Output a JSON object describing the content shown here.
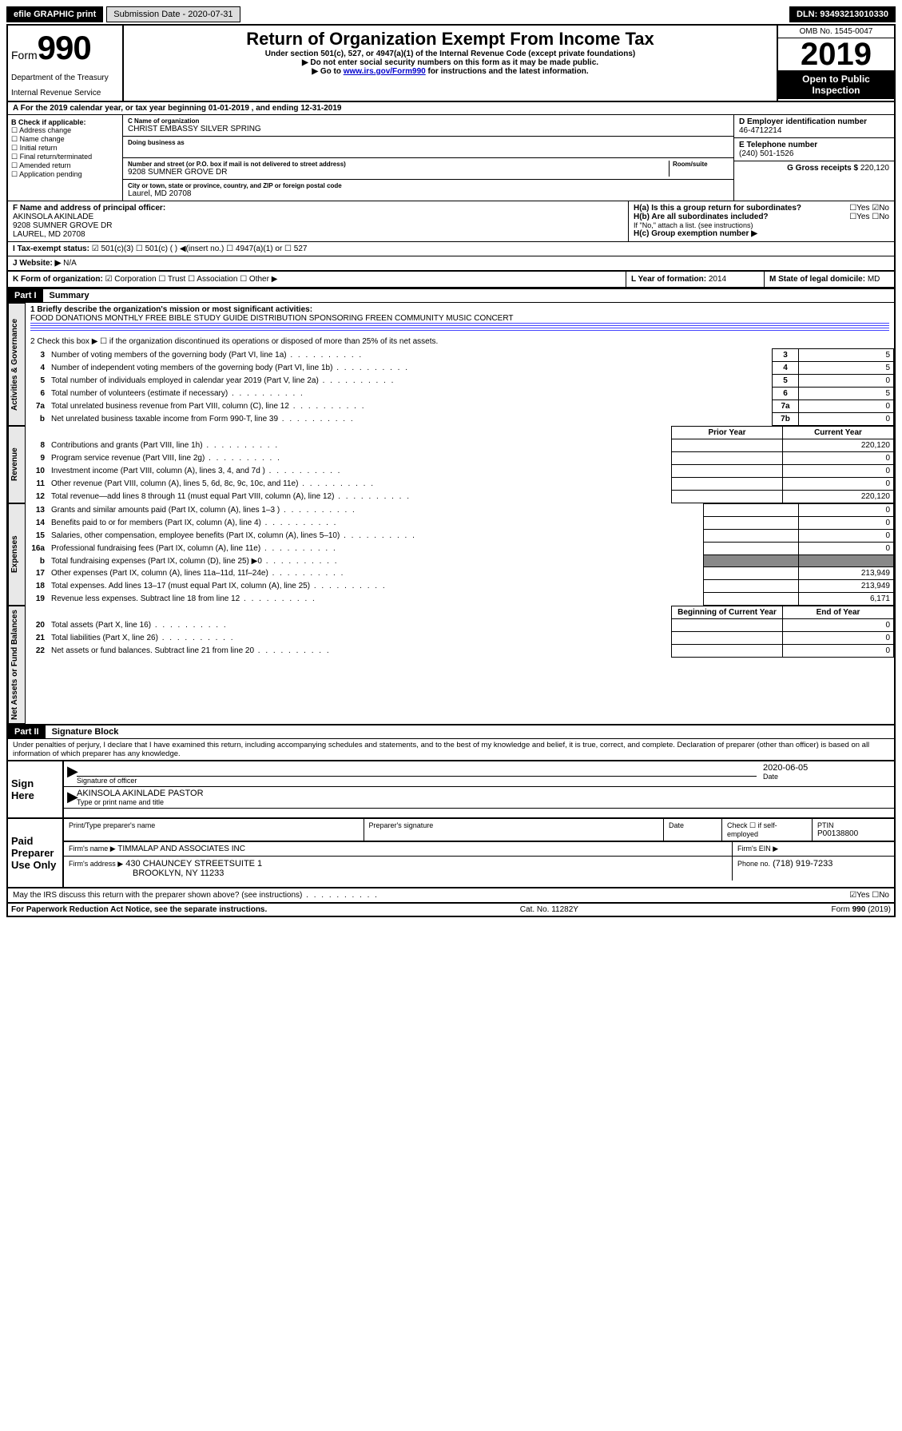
{
  "topbar": {
    "efile": "efile GRAPHIC print",
    "subdate_label": "Submission Date - 2020-07-31",
    "dln_label": "DLN: 93493213010330"
  },
  "header": {
    "form_prefix": "Form",
    "form_num": "990",
    "dept1": "Department of the Treasury",
    "dept2": "Internal Revenue Service",
    "title": "Return of Organization Exempt From Income Tax",
    "subtitle": "Under section 501(c), 527, or 4947(a)(1) of the Internal Revenue Code (except private foundations)",
    "instr1": "▶ Do not enter social security numbers on this form as it may be made public.",
    "instr2_pre": "▶ Go to ",
    "instr2_link": "www.irs.gov/Form990",
    "instr2_post": " for instructions and the latest information.",
    "omb": "OMB No. 1545-0047",
    "year": "2019",
    "open": "Open to Public Inspection"
  },
  "rowA": "A For the 2019 calendar year, or tax year beginning 01-01-2019   , and ending 12-31-2019",
  "boxB": {
    "title": "B Check if applicable:",
    "opts": [
      "☐ Address change",
      "☐ Name change",
      "☐ Initial return",
      "☐ Final return/terminated",
      "☐ Amended return",
      "☐ Application pending"
    ]
  },
  "boxC": {
    "lbl_name": "C Name of organization",
    "name": "CHRIST EMBASSY SILVER SPRING",
    "dba_lbl": "Doing business as",
    "addr_lbl": "Number and street (or P.O. box if mail is not delivered to street address)",
    "room_lbl": "Room/suite",
    "addr": "9208 SUMNER GROVE DR",
    "city_lbl": "City or town, state or province, country, and ZIP or foreign postal code",
    "city": "Laurel, MD  20708"
  },
  "boxD": {
    "lbl": "D Employer identification number",
    "val": "46-4712214"
  },
  "boxE": {
    "lbl": "E Telephone number",
    "val": "(240) 501-1526"
  },
  "boxG": {
    "lbl": "G Gross receipts $",
    "val": "220,120"
  },
  "boxF": {
    "lbl": "F  Name and address of principal officer:",
    "l1": "AKINSOLA AKINLADE",
    "l2": "9208 SUMNER GROVE DR",
    "l3": "LAUREL, MD  20708"
  },
  "boxH": {
    "a": "H(a)  Is this a group return for subordinates?",
    "ayn": "☐Yes ☑No",
    "b": "H(b)  Are all subordinates included?",
    "byn": "☐Yes ☐No",
    "bnote": "If \"No,\" attach a list. (see instructions)",
    "c": "H(c)  Group exemption number ▶"
  },
  "rowI": {
    "lbl": "I    Tax-exempt status:",
    "opts": "☑ 501(c)(3)   ☐ 501(c) (  ) ◀(insert no.)    ☐ 4947(a)(1) or   ☐ 527"
  },
  "rowJ": {
    "lbl": "J   Website: ▶",
    "val": "N/A"
  },
  "rowK": {
    "lbl": "K Form of organization:",
    "opts": "☑ Corporation  ☐ Trust  ☐ Association  ☐ Other ▶"
  },
  "rowL": {
    "lbl": "L Year of formation:",
    "val": "2014"
  },
  "rowM": {
    "lbl": "M State of legal domicile:",
    "val": "MD"
  },
  "part1": {
    "hdr": "Part I",
    "title": "Summary",
    "line1_lbl": "1 Briefly describe the organization's mission or most significant activities:",
    "line1_val": "FOOD DONATIONS MONTHLY FREE BIBLE STUDY GUIDE DISTRIBUTION SPONSORING FREEN COMMUNITY MUSIC CONCERT",
    "line2": "2   Check this box ▶ ☐ if the organization discontinued its operations or disposed of more than 25% of its net assets.",
    "tab_gov": "Activities & Governance",
    "tab_rev": "Revenue",
    "tab_exp": "Expenses",
    "tab_net": "Net Assets or Fund Balances",
    "rows_gov": [
      {
        "n": "3",
        "t": "Number of voting members of the governing body (Part VI, line 1a)",
        "c": "3",
        "v": "5"
      },
      {
        "n": "4",
        "t": "Number of independent voting members of the governing body (Part VI, line 1b)",
        "c": "4",
        "v": "5"
      },
      {
        "n": "5",
        "t": "Total number of individuals employed in calendar year 2019 (Part V, line 2a)",
        "c": "5",
        "v": "0"
      },
      {
        "n": "6",
        "t": "Total number of volunteers (estimate if necessary)",
        "c": "6",
        "v": "5"
      },
      {
        "n": "7a",
        "t": "Total unrelated business revenue from Part VIII, column (C), line 12",
        "c": "7a",
        "v": "0"
      },
      {
        "n": "b",
        "t": "Net unrelated business taxable income from Form 990-T, line 39",
        "c": "7b",
        "v": "0"
      }
    ],
    "hdr_prior": "Prior Year",
    "hdr_curr": "Current Year",
    "rows_rev": [
      {
        "n": "8",
        "t": "Contributions and grants (Part VIII, line 1h)",
        "p": "",
        "c": "220,120"
      },
      {
        "n": "9",
        "t": "Program service revenue (Part VIII, line 2g)",
        "p": "",
        "c": "0"
      },
      {
        "n": "10",
        "t": "Investment income (Part VIII, column (A), lines 3, 4, and 7d )",
        "p": "",
        "c": "0"
      },
      {
        "n": "11",
        "t": "Other revenue (Part VIII, column (A), lines 5, 6d, 8c, 9c, 10c, and 11e)",
        "p": "",
        "c": "0"
      },
      {
        "n": "12",
        "t": "Total revenue—add lines 8 through 11 (must equal Part VIII, column (A), line 12)",
        "p": "",
        "c": "220,120"
      }
    ],
    "rows_exp": [
      {
        "n": "13",
        "t": "Grants and similar amounts paid (Part IX, column (A), lines 1–3 )",
        "p": "",
        "c": "0"
      },
      {
        "n": "14",
        "t": "Benefits paid to or for members (Part IX, column (A), line 4)",
        "p": "",
        "c": "0"
      },
      {
        "n": "15",
        "t": "Salaries, other compensation, employee benefits (Part IX, column (A), lines 5–10)",
        "p": "",
        "c": "0"
      },
      {
        "n": "16a",
        "t": "Professional fundraising fees (Part IX, column (A), line 11e)",
        "p": "",
        "c": "0"
      },
      {
        "n": "b",
        "t": "Total fundraising expenses (Part IX, column (D), line 25) ▶0",
        "p": "-",
        "c": "-"
      },
      {
        "n": "17",
        "t": "Other expenses (Part IX, column (A), lines 11a–11d, 11f–24e)",
        "p": "",
        "c": "213,949"
      },
      {
        "n": "18",
        "t": "Total expenses. Add lines 13–17 (must equal Part IX, column (A), line 25)",
        "p": "",
        "c": "213,949"
      },
      {
        "n": "19",
        "t": "Revenue less expenses. Subtract line 18 from line 12",
        "p": "",
        "c": "6,171"
      }
    ],
    "hdr_beg": "Beginning of Current Year",
    "hdr_end": "End of Year",
    "rows_net": [
      {
        "n": "20",
        "t": "Total assets (Part X, line 16)",
        "p": "",
        "c": "0"
      },
      {
        "n": "21",
        "t": "Total liabilities (Part X, line 26)",
        "p": "",
        "c": "0"
      },
      {
        "n": "22",
        "t": "Net assets or fund balances. Subtract line 21 from line 20",
        "p": "",
        "c": "0"
      }
    ]
  },
  "part2": {
    "hdr": "Part II",
    "title": "Signature Block",
    "perjury": "Under penalties of perjury, I declare that I have examined this return, including accompanying schedules and statements, and to the best of my knowledge and belief, it is true, correct, and complete. Declaration of preparer (other than officer) is based on all information of which preparer has any knowledge.",
    "sign_here": "Sign Here",
    "sig_officer": "Signature of officer",
    "sig_date": "2020-06-05",
    "date_lbl": "Date",
    "name_title": "AKINSOLA AKINLADE PASTOR",
    "type_lbl": "Type or print name and title",
    "paid": "Paid Preparer Use Only",
    "prep_name_lbl": "Print/Type preparer's name",
    "prep_sig_lbl": "Preparer's signature",
    "prep_date_lbl": "Date",
    "check_self": "Check ☐ if self-employed",
    "ptin_lbl": "PTIN",
    "ptin": "P00138800",
    "firm_name_lbl": "Firm's name    ▶",
    "firm_name": "TIMMALAP AND ASSOCIATES INC",
    "firm_ein_lbl": "Firm's EIN ▶",
    "firm_addr_lbl": "Firm's address ▶",
    "firm_addr1": "430 CHAUNCEY STREETSUITE 1",
    "firm_addr2": "BROOKLYN, NY  11233",
    "phone_lbl": "Phone no.",
    "phone": "(718) 919-7233",
    "discuss": "May the IRS discuss this return with the preparer shown above? (see instructions)",
    "discuss_yn": "☑Yes  ☐No"
  },
  "footer": {
    "pra": "For Paperwork Reduction Act Notice, see the separate instructions.",
    "cat": "Cat. No. 11282Y",
    "form": "Form 990 (2019)"
  }
}
